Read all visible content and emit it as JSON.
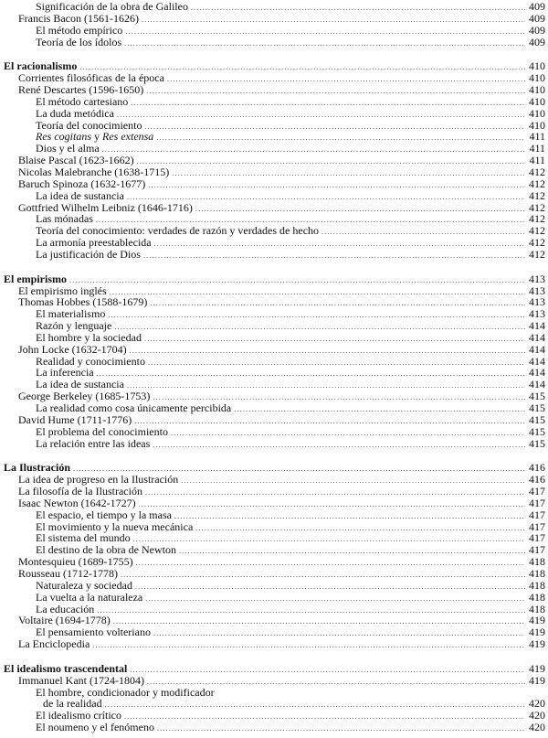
{
  "toc": [
    {
      "heading": null,
      "entries": [
        {
          "level": 2,
          "text": "Significación de la obra de Galileo",
          "page": "409"
        },
        {
          "level": 1,
          "text": "Francis Bacon (1561-1626)",
          "page": "409"
        },
        {
          "level": 2,
          "text": "El método empírico",
          "page": "409"
        },
        {
          "level": 2,
          "text": "Teoría de los ídolos",
          "page": "409"
        }
      ]
    },
    {
      "heading": {
        "text": "El racionalismo",
        "page": "410"
      },
      "entries": [
        {
          "level": 1,
          "text": "Corrientes filosóficas de la época",
          "page": "410"
        },
        {
          "level": 1,
          "text": "René Descartes (1596-1650)",
          "page": "410"
        },
        {
          "level": 2,
          "text": "El método cartesiano",
          "page": "410"
        },
        {
          "level": 2,
          "text": "La duda metódica",
          "page": "410"
        },
        {
          "level": 2,
          "text": "Teoría del conocimiento",
          "page": "410"
        },
        {
          "level": 2,
          "text": "Res cogitans y Res extensa",
          "parts": [
            {
              "t": "Res cogitans",
              "i": true
            },
            {
              "t": " y ",
              "i": false
            },
            {
              "t": "Res extensa",
              "i": true
            }
          ],
          "page": "411"
        },
        {
          "level": 2,
          "text": "Dios y el alma",
          "page": "411"
        },
        {
          "level": 1,
          "text": "Blaise Pascal (1623-1662)",
          "page": "411"
        },
        {
          "level": 1,
          "text": "Nicolas Malebranche (1638-1715)",
          "page": "412"
        },
        {
          "level": 1,
          "text": "Baruch Spinoza (1632-1677)",
          "page": "412"
        },
        {
          "level": 2,
          "text": "La idea de sustancia",
          "page": "412"
        },
        {
          "level": 1,
          "text": "Gottfried Wilhelm Leibniz (1646-1716)",
          "page": "412"
        },
        {
          "level": 2,
          "text": "Las mónadas",
          "page": "412"
        },
        {
          "level": 2,
          "text": "Teoría del conocimiento: verdades de razón y verdades de hecho",
          "page": "412"
        },
        {
          "level": 2,
          "text": "La armonía preestablecida",
          "page": "412"
        },
        {
          "level": 2,
          "text": "La justificación de Dios",
          "page": "412"
        }
      ]
    },
    {
      "heading": {
        "text": "El empirismo",
        "page": "413"
      },
      "entries": [
        {
          "level": 1,
          "text": "El empirismo inglés",
          "page": "413"
        },
        {
          "level": 1,
          "text": "Thomas Hobbes (1588-1679)",
          "page": "413"
        },
        {
          "level": 2,
          "text": "El materialismo",
          "page": "413"
        },
        {
          "level": 2,
          "text": "Razón y lenguaje",
          "page": "414"
        },
        {
          "level": 2,
          "text": "El hombre y la sociedad",
          "page": "414"
        },
        {
          "level": 1,
          "text": "John Locke (1632-1704)",
          "page": "414"
        },
        {
          "level": 2,
          "text": "Realidad y conocimiento",
          "page": "414"
        },
        {
          "level": 2,
          "text": "La inferencia",
          "page": "414"
        },
        {
          "level": 2,
          "text": "La idea de sustancia",
          "page": "414"
        },
        {
          "level": 1,
          "text": "George Berkeley (1685-1753)",
          "page": "415"
        },
        {
          "level": 2,
          "text": "La realidad como cosa únicamente percibida",
          "page": "415"
        },
        {
          "level": 1,
          "text": "David Hume (1711-1776)",
          "page": "415"
        },
        {
          "level": 2,
          "text": "El problema del conocimiento",
          "page": "415"
        },
        {
          "level": 2,
          "text": "La relación entre las ideas",
          "page": "415"
        }
      ]
    },
    {
      "heading": {
        "text": "La Ilustración",
        "page": "416"
      },
      "entries": [
        {
          "level": 1,
          "text": "La idea de progreso en la Ilustración",
          "page": "416"
        },
        {
          "level": 1,
          "text": "La filosofía de la Ilustración",
          "page": "417"
        },
        {
          "level": 1,
          "text": "Isaac Newton (1642-1727)",
          "page": "417"
        },
        {
          "level": 2,
          "text": "El espacio, el tiempo y la masa",
          "page": "417"
        },
        {
          "level": 2,
          "text": "El movimiento y la nueva mecánica",
          "page": "417"
        },
        {
          "level": 2,
          "text": "El sistema del mundo",
          "page": "417"
        },
        {
          "level": 2,
          "text": "El destino de la obra de Newton",
          "page": "417"
        },
        {
          "level": 1,
          "text": "Montesquieu (1689-1755)",
          "page": "418"
        },
        {
          "level": 1,
          "text": "Rousseau (1712-1778)",
          "page": "418"
        },
        {
          "level": 2,
          "text": "Naturaleza y sociedad",
          "page": "418"
        },
        {
          "level": 2,
          "text": "La vuelta a la naturaleza",
          "page": "418"
        },
        {
          "level": 2,
          "text": "La educación",
          "page": "418"
        },
        {
          "level": 1,
          "text": "Voltaire (1694-1778)",
          "page": "419"
        },
        {
          "level": 2,
          "text": "El pensamiento volteriano",
          "page": "419"
        },
        {
          "level": 1,
          "text": "La Enciclopedia",
          "page": "419"
        }
      ]
    },
    {
      "heading": {
        "text": "El idealismo trascendental",
        "page": "419"
      },
      "entries": [
        {
          "level": 1,
          "text": "Immanuel Kant (1724-1804)",
          "page": "419"
        },
        {
          "level": 2,
          "text": "El hombre, condicionador y modificador",
          "continuation": "de la realidad",
          "page": "420"
        },
        {
          "level": 2,
          "text": "El idealismo crítico",
          "page": "420"
        },
        {
          "level": 2,
          "text": "El noumeno y el fenómeno",
          "page": "420"
        }
      ]
    }
  ]
}
